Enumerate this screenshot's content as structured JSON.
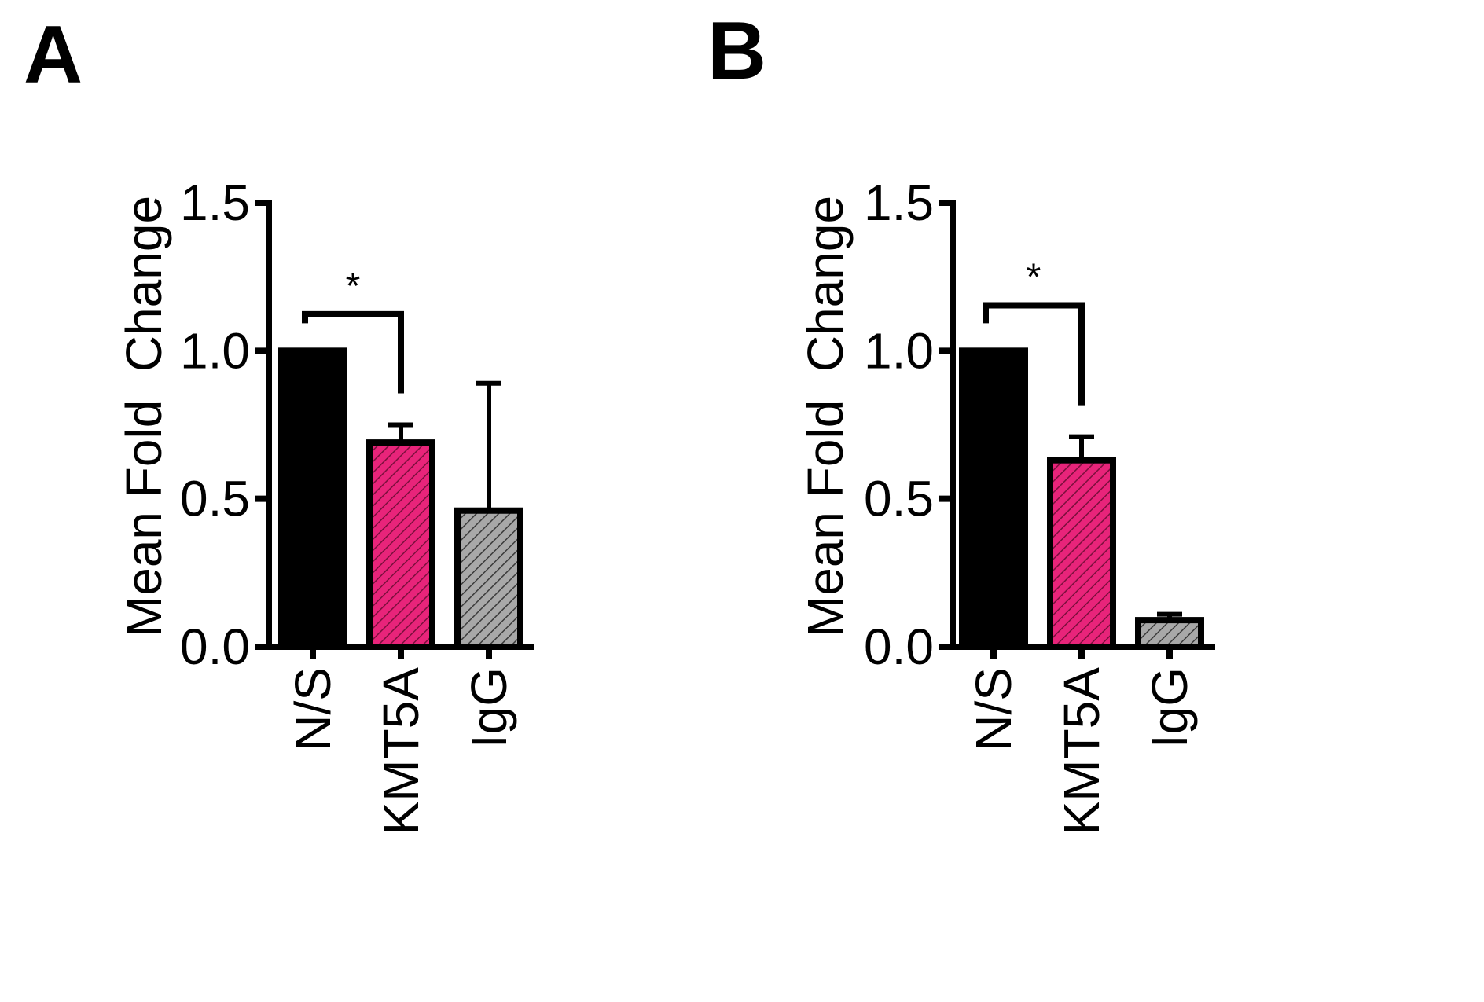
{
  "chart_data": [
    {
      "panel_label": "A",
      "type": "bar",
      "title": "",
      "xlabel": "",
      "ylabel": "Mean Fold  Change",
      "ylim": [
        0,
        1.5
      ],
      "yticks": [
        0.0,
        0.5,
        1.0,
        1.5
      ],
      "ytick_labels": [
        "0.0",
        "0.5",
        "1.0",
        "1.5"
      ],
      "categories": [
        "N/S",
        "KMT5A",
        "IgG"
      ],
      "values": [
        1.0,
        0.69,
        0.46
      ],
      "error_upper": [
        null,
        0.06,
        0.43
      ],
      "bar_styles": [
        {
          "fill": "#000000",
          "pattern": "solid"
        },
        {
          "fill": "#e8247a",
          "pattern": "diagonal-hatch"
        },
        {
          "fill": "#9a9a9a",
          "pattern": "diagonal-hatch"
        }
      ],
      "significance": [
        {
          "from": "N/S",
          "to": "KMT5A",
          "label": "*",
          "level": 1.15
        }
      ],
      "grid": false
    },
    {
      "panel_label": "B",
      "type": "bar",
      "title": "",
      "xlabel": "",
      "ylabel": "Mean Fold  Change",
      "ylim": [
        0,
        1.5
      ],
      "yticks": [
        0.0,
        0.5,
        1.0,
        1.5
      ],
      "ytick_labels": [
        "0.0",
        "0.5",
        "1.0",
        "1.5"
      ],
      "categories": [
        "N/S",
        "KMT5A",
        "IgG"
      ],
      "values": [
        1.0,
        0.63,
        0.09
      ],
      "error_upper": [
        null,
        0.08,
        0.02
      ],
      "bar_styles": [
        {
          "fill": "#000000",
          "pattern": "solid"
        },
        {
          "fill": "#e8247a",
          "pattern": "diagonal-hatch"
        },
        {
          "fill": "#9a9a9a",
          "pattern": "diagonal-hatch"
        }
      ],
      "significance": [
        {
          "from": "N/S",
          "to": "KMT5A",
          "label": "*",
          "level": 1.18
        }
      ],
      "grid": false
    }
  ]
}
